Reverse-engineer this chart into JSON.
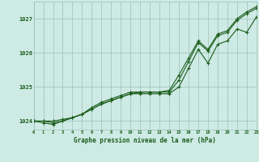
{
  "hours": [
    0,
    1,
    2,
    3,
    4,
    5,
    6,
    7,
    8,
    9,
    10,
    11,
    12,
    13,
    14,
    15,
    16,
    17,
    18,
    19,
    20,
    21,
    22,
    23
  ],
  "line1": [
    1024.0,
    1024.0,
    1024.0,
    1024.05,
    1024.1,
    1024.2,
    1024.35,
    1024.5,
    1024.6,
    1024.7,
    1024.8,
    1024.85,
    1024.85,
    1024.85,
    1024.85,
    1025.2,
    1025.75,
    1026.3,
    1026.05,
    1026.5,
    1026.6,
    1026.95,
    1027.15,
    1027.3
  ],
  "line2": [
    1024.0,
    1024.0,
    1023.95,
    1024.0,
    1024.1,
    1024.2,
    1024.4,
    1024.55,
    1024.65,
    1024.75,
    1024.85,
    1024.85,
    1024.85,
    1024.85,
    1024.9,
    1025.35,
    1025.85,
    1026.35,
    1026.1,
    1026.55,
    1026.65,
    1027.0,
    1027.2,
    1027.35
  ],
  "line3": [
    1024.0,
    1023.95,
    1023.9,
    1024.0,
    1024.1,
    1024.2,
    1024.35,
    1024.5,
    1024.6,
    1024.7,
    1024.8,
    1024.8,
    1024.8,
    1024.8,
    1024.8,
    1025.0,
    1025.55,
    1026.1,
    1025.7,
    1026.25,
    1026.35,
    1026.7,
    1026.6,
    1027.05
  ],
  "title": "Graphe pression niveau de la mer (hPa)",
  "bg_color": "#ceeae4",
  "line_color": "#1a5c1a",
  "grid_color": "#9dbfb8",
  "text_color": "#1a5c1a",
  "ylim": [
    1023.75,
    1027.5
  ],
  "yticks": [
    1024,
    1025,
    1026,
    1027
  ],
  "xlim": [
    0,
    23
  ]
}
